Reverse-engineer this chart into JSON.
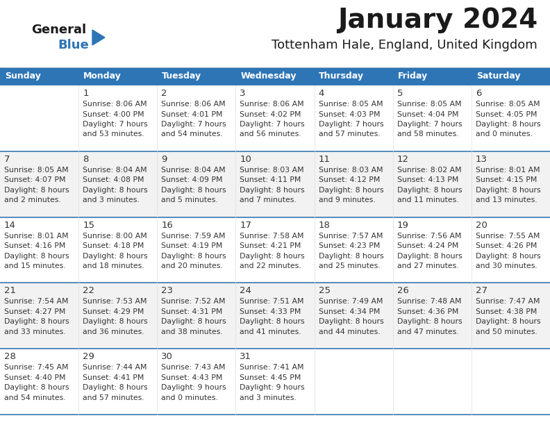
{
  "title": "January 2024",
  "subtitle": "Tottenham Hale, England, United Kingdom",
  "header_bg": "#2E75B6",
  "header_text_color": "#FFFFFF",
  "row_bg_white": "#FFFFFF",
  "row_bg_gray": "#F2F2F2",
  "text_color": "#333333",
  "separator_color": "#3878B0",
  "days_of_week": [
    "Sunday",
    "Monday",
    "Tuesday",
    "Wednesday",
    "Thursday",
    "Friday",
    "Saturday"
  ],
  "calendar_data": [
    [
      "",
      "1\nSunrise: 8:06 AM\nSunset: 4:00 PM\nDaylight: 7 hours\nand 53 minutes.",
      "2\nSunrise: 8:06 AM\nSunset: 4:01 PM\nDaylight: 7 hours\nand 54 minutes.",
      "3\nSunrise: 8:06 AM\nSunset: 4:02 PM\nDaylight: 7 hours\nand 56 minutes.",
      "4\nSunrise: 8:05 AM\nSunset: 4:03 PM\nDaylight: 7 hours\nand 57 minutes.",
      "5\nSunrise: 8:05 AM\nSunset: 4:04 PM\nDaylight: 7 hours\nand 58 minutes.",
      "6\nSunrise: 8:05 AM\nSunset: 4:05 PM\nDaylight: 8 hours\nand 0 minutes."
    ],
    [
      "7\nSunrise: 8:05 AM\nSunset: 4:07 PM\nDaylight: 8 hours\nand 2 minutes.",
      "8\nSunrise: 8:04 AM\nSunset: 4:08 PM\nDaylight: 8 hours\nand 3 minutes.",
      "9\nSunrise: 8:04 AM\nSunset: 4:09 PM\nDaylight: 8 hours\nand 5 minutes.",
      "10\nSunrise: 8:03 AM\nSunset: 4:11 PM\nDaylight: 8 hours\nand 7 minutes.",
      "11\nSunrise: 8:03 AM\nSunset: 4:12 PM\nDaylight: 8 hours\nand 9 minutes.",
      "12\nSunrise: 8:02 AM\nSunset: 4:13 PM\nDaylight: 8 hours\nand 11 minutes.",
      "13\nSunrise: 8:01 AM\nSunset: 4:15 PM\nDaylight: 8 hours\nand 13 minutes."
    ],
    [
      "14\nSunrise: 8:01 AM\nSunset: 4:16 PM\nDaylight: 8 hours\nand 15 minutes.",
      "15\nSunrise: 8:00 AM\nSunset: 4:18 PM\nDaylight: 8 hours\nand 18 minutes.",
      "16\nSunrise: 7:59 AM\nSunset: 4:19 PM\nDaylight: 8 hours\nand 20 minutes.",
      "17\nSunrise: 7:58 AM\nSunset: 4:21 PM\nDaylight: 8 hours\nand 22 minutes.",
      "18\nSunrise: 7:57 AM\nSunset: 4:23 PM\nDaylight: 8 hours\nand 25 minutes.",
      "19\nSunrise: 7:56 AM\nSunset: 4:24 PM\nDaylight: 8 hours\nand 27 minutes.",
      "20\nSunrise: 7:55 AM\nSunset: 4:26 PM\nDaylight: 8 hours\nand 30 minutes."
    ],
    [
      "21\nSunrise: 7:54 AM\nSunset: 4:27 PM\nDaylight: 8 hours\nand 33 minutes.",
      "22\nSunrise: 7:53 AM\nSunset: 4:29 PM\nDaylight: 8 hours\nand 36 minutes.",
      "23\nSunrise: 7:52 AM\nSunset: 4:31 PM\nDaylight: 8 hours\nand 38 minutes.",
      "24\nSunrise: 7:51 AM\nSunset: 4:33 PM\nDaylight: 8 hours\nand 41 minutes.",
      "25\nSunrise: 7:49 AM\nSunset: 4:34 PM\nDaylight: 8 hours\nand 44 minutes.",
      "26\nSunrise: 7:48 AM\nSunset: 4:36 PM\nDaylight: 8 hours\nand 47 minutes.",
      "27\nSunrise: 7:47 AM\nSunset: 4:38 PM\nDaylight: 8 hours\nand 50 minutes."
    ],
    [
      "28\nSunrise: 7:45 AM\nSunset: 4:40 PM\nDaylight: 8 hours\nand 54 minutes.",
      "29\nSunrise: 7:44 AM\nSunset: 4:41 PM\nDaylight: 8 hours\nand 57 minutes.",
      "30\nSunrise: 7:43 AM\nSunset: 4:43 PM\nDaylight: 9 hours\nand 0 minutes.",
      "31\nSunrise: 7:41 AM\nSunset: 4:45 PM\nDaylight: 9 hours\nand 3 minutes.",
      "",
      "",
      ""
    ]
  ]
}
